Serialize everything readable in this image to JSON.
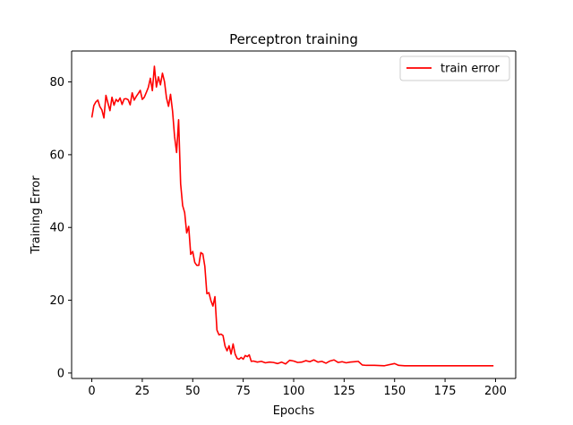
{
  "chart_data": {
    "type": "line",
    "title": "Perceptron training",
    "xlabel": "Epochs",
    "ylabel": "Training Error",
    "xlim": [
      -10,
      210
    ],
    "ylim": [
      -1.5,
      88.5
    ],
    "xticks": [
      0,
      25,
      50,
      75,
      100,
      125,
      150,
      175,
      200
    ],
    "yticks": [
      0,
      20,
      40,
      60,
      80
    ],
    "grid": false,
    "legend_position": "upper-right",
    "series": [
      {
        "name": "train error",
        "color": "#ff0000",
        "x": [
          0,
          1,
          2,
          3,
          4,
          5,
          6,
          7,
          8,
          9,
          10,
          11,
          12,
          13,
          14,
          15,
          16,
          17,
          18,
          19,
          20,
          21,
          22,
          23,
          24,
          25,
          26,
          27,
          28,
          29,
          30,
          31,
          32,
          33,
          34,
          35,
          36,
          37,
          38,
          39,
          40,
          41,
          42,
          43,
          44,
          45,
          46,
          47,
          48,
          49,
          50,
          51,
          52,
          53,
          54,
          55,
          56,
          57,
          58,
          59,
          60,
          61,
          62,
          63,
          64,
          65,
          66,
          67,
          68,
          69,
          70,
          71,
          72,
          73,
          74,
          75,
          76,
          77,
          78,
          79,
          80,
          82,
          84,
          86,
          88,
          90,
          92,
          94,
          96,
          98,
          100,
          102,
          104,
          106,
          108,
          110,
          112,
          114,
          116,
          118,
          120,
          122,
          124,
          126,
          128,
          130,
          132,
          134,
          136,
          138,
          140,
          145,
          150,
          152,
          155,
          160,
          165,
          170,
          175,
          180,
          185,
          190,
          195,
          199
        ],
        "y": [
          70.2,
          73.5,
          74.5,
          75.0,
          73.2,
          72.3,
          70.1,
          76.3,
          74.2,
          72.1,
          75.8,
          73.6,
          75.2,
          74.6,
          75.6,
          73.8,
          75.3,
          75.4,
          75.1,
          73.7,
          77.0,
          75.0,
          76.0,
          76.8,
          77.7,
          75.2,
          75.8,
          77.1,
          78.5,
          81.0,
          77.6,
          84.3,
          78.6,
          81.4,
          79.2,
          82.4,
          80.1,
          75.6,
          73.3,
          76.6,
          72.0,
          65.0,
          60.6,
          69.6,
          52.0,
          46.0,
          44.1,
          38.5,
          40.3,
          32.6,
          33.4,
          30.4,
          29.6,
          29.6,
          33.1,
          32.7,
          29.3,
          21.8,
          22.1,
          19.9,
          18.4,
          21.0,
          11.8,
          10.5,
          10.7,
          10.3,
          7.4,
          6.1,
          7.5,
          5.2,
          8.0,
          5.2,
          4.0,
          3.8,
          4.3,
          3.8,
          4.8,
          4.5,
          5.0,
          3.2,
          3.3,
          3.0,
          3.2,
          2.8,
          3.0,
          2.9,
          2.6,
          3.0,
          2.5,
          3.5,
          3.3,
          2.9,
          3.0,
          3.4,
          3.1,
          3.6,
          3.0,
          3.2,
          2.7,
          3.3,
          3.6,
          2.9,
          3.1,
          2.8,
          3.0,
          3.1,
          3.2,
          2.2,
          2.1,
          2.1,
          2.1,
          2.0,
          2.6,
          2.1,
          2.0,
          2.0,
          2.0,
          2.0,
          2.0,
          2.0,
          2.0,
          2.0,
          2.0,
          2.0
        ]
      }
    ]
  }
}
